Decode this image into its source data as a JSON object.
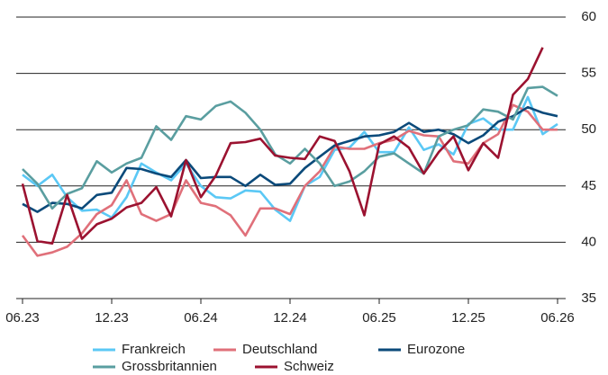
{
  "chart_data": {
    "type": "line",
    "categories": [
      "06.23",
      null,
      null,
      null,
      null,
      null,
      "12.23",
      null,
      null,
      null,
      null,
      null,
      "06.24",
      null,
      null,
      null,
      null,
      null,
      "12.24",
      null,
      null,
      null,
      null,
      null,
      "06.25",
      null,
      null,
      null,
      null,
      null,
      "12.25",
      null,
      null,
      null,
      null,
      null,
      "06.26"
    ],
    "series": [
      {
        "name": "Frankreich",
        "color": "#5bc8f5",
        "values": [
          46.0,
          45.0,
          46.0,
          44.0,
          42.8,
          42.9,
          42.2,
          44.0,
          47.0,
          46.2,
          45.5,
          47.0,
          45.0,
          44.0,
          43.9,
          44.6,
          44.5,
          42.9,
          41.9,
          45.0,
          45.8,
          48.2,
          48.4,
          49.8,
          48.0,
          48.0,
          50.2,
          48.2,
          48.7,
          47.8,
          50.5,
          51.0,
          50.0,
          50.0,
          52.9,
          49.6,
          50.5
        ]
      },
      {
        "name": "Deutschland",
        "color": "#e0707a",
        "values": [
          40.6,
          38.8,
          39.1,
          39.6,
          40.8,
          42.5,
          43.3,
          45.5,
          42.5,
          41.9,
          42.5,
          45.5,
          43.5,
          43.2,
          42.4,
          40.6,
          43.0,
          43.0,
          42.5,
          45.0,
          46.3,
          48.5,
          48.3,
          48.3,
          48.8,
          49.1,
          49.9,
          49.5,
          49.4,
          47.2,
          47.0,
          48.8,
          49.6,
          52.2,
          51.6,
          50.0,
          50.0
        ]
      },
      {
        "name": "Eurozone",
        "color": "#0b4a7a",
        "values": [
          43.4,
          42.7,
          43.5,
          43.4,
          43.0,
          44.2,
          44.4,
          46.6,
          46.5,
          46.1,
          45.8,
          47.3,
          45.7,
          45.8,
          45.8,
          45.0,
          46.0,
          45.1,
          45.2,
          46.6,
          47.6,
          48.6,
          49.0,
          49.4,
          49.5,
          49.8,
          50.6,
          49.8,
          50.0,
          49.6,
          48.8,
          49.5,
          50.7,
          51.2,
          52.0,
          51.5,
          51.2
        ]
      },
      {
        "name": "Grossbritannien",
        "color": "#5a9ea0",
        "values": [
          46.5,
          45.2,
          43.0,
          44.3,
          44.8,
          47.2,
          46.2,
          47.0,
          47.5,
          50.3,
          49.1,
          51.2,
          50.9,
          52.1,
          52.5,
          51.5,
          50.0,
          47.8,
          47.0,
          48.3,
          47.0,
          45.0,
          45.4,
          46.3,
          47.6,
          47.9,
          47.0,
          46.1,
          49.4,
          50.0,
          50.4,
          51.8,
          51.6,
          50.9,
          53.7,
          53.8,
          53.0
        ]
      },
      {
        "name": "Schweiz",
        "color": "#9b1230",
        "values": [
          45.2,
          40.1,
          39.9,
          44.2,
          40.3,
          41.6,
          42.1,
          43.1,
          43.5,
          44.9,
          42.3,
          47.3,
          44.0,
          45.9,
          48.8,
          48.9,
          49.2,
          47.7,
          47.5,
          47.4,
          49.4,
          49.0,
          46.3,
          42.4,
          48.7,
          49.4,
          48.4,
          46.1,
          48.0,
          49.4,
          46.4,
          48.8,
          47.5,
          53.1,
          54.5,
          57.3,
          null
        ]
      }
    ],
    "ylim": [
      35,
      60
    ],
    "yticks": [
      35,
      40,
      45,
      50,
      55,
      60
    ],
    "grid": true
  }
}
